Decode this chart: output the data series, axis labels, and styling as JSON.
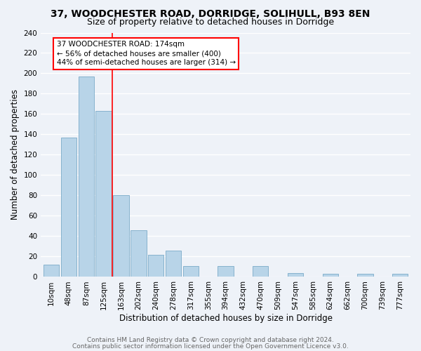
{
  "title": "37, WOODCHESTER ROAD, DORRIDGE, SOLIHULL, B93 8EN",
  "subtitle": "Size of property relative to detached houses in Dorridge",
  "xlabel": "Distribution of detached houses by size in Dorridge",
  "ylabel": "Number of detached properties",
  "bar_labels": [
    "10sqm",
    "48sqm",
    "87sqm",
    "125sqm",
    "163sqm",
    "202sqm",
    "240sqm",
    "278sqm",
    "317sqm",
    "355sqm",
    "394sqm",
    "432sqm",
    "470sqm",
    "509sqm",
    "547sqm",
    "585sqm",
    "624sqm",
    "662sqm",
    "700sqm",
    "739sqm",
    "777sqm"
  ],
  "bar_values": [
    12,
    137,
    197,
    163,
    80,
    46,
    22,
    26,
    11,
    0,
    11,
    0,
    11,
    0,
    4,
    0,
    3,
    0,
    3,
    0,
    3
  ],
  "bar_color": "#b8d4e8",
  "bar_edge_color": "#7aaac8",
  "highlight_line_after_index": 3,
  "annotation_text": "37 WOODCHESTER ROAD: 174sqm\n← 56% of detached houses are smaller (400)\n44% of semi-detached houses are larger (314) →",
  "annotation_box_color": "white",
  "annotation_box_edge": "red",
  "ylim": [
    0,
    240
  ],
  "yticks": [
    0,
    20,
    40,
    60,
    80,
    100,
    120,
    140,
    160,
    180,
    200,
    220,
    240
  ],
  "footer_line1": "Contains HM Land Registry data © Crown copyright and database right 2024.",
  "footer_line2": "Contains public sector information licensed under the Open Government Licence v3.0.",
  "bg_color": "#eef2f8",
  "grid_color": "white",
  "title_fontsize": 10,
  "subtitle_fontsize": 9,
  "tick_fontsize": 7.5,
  "label_fontsize": 8.5,
  "footer_fontsize": 6.5,
  "annotation_fontsize": 7.5
}
